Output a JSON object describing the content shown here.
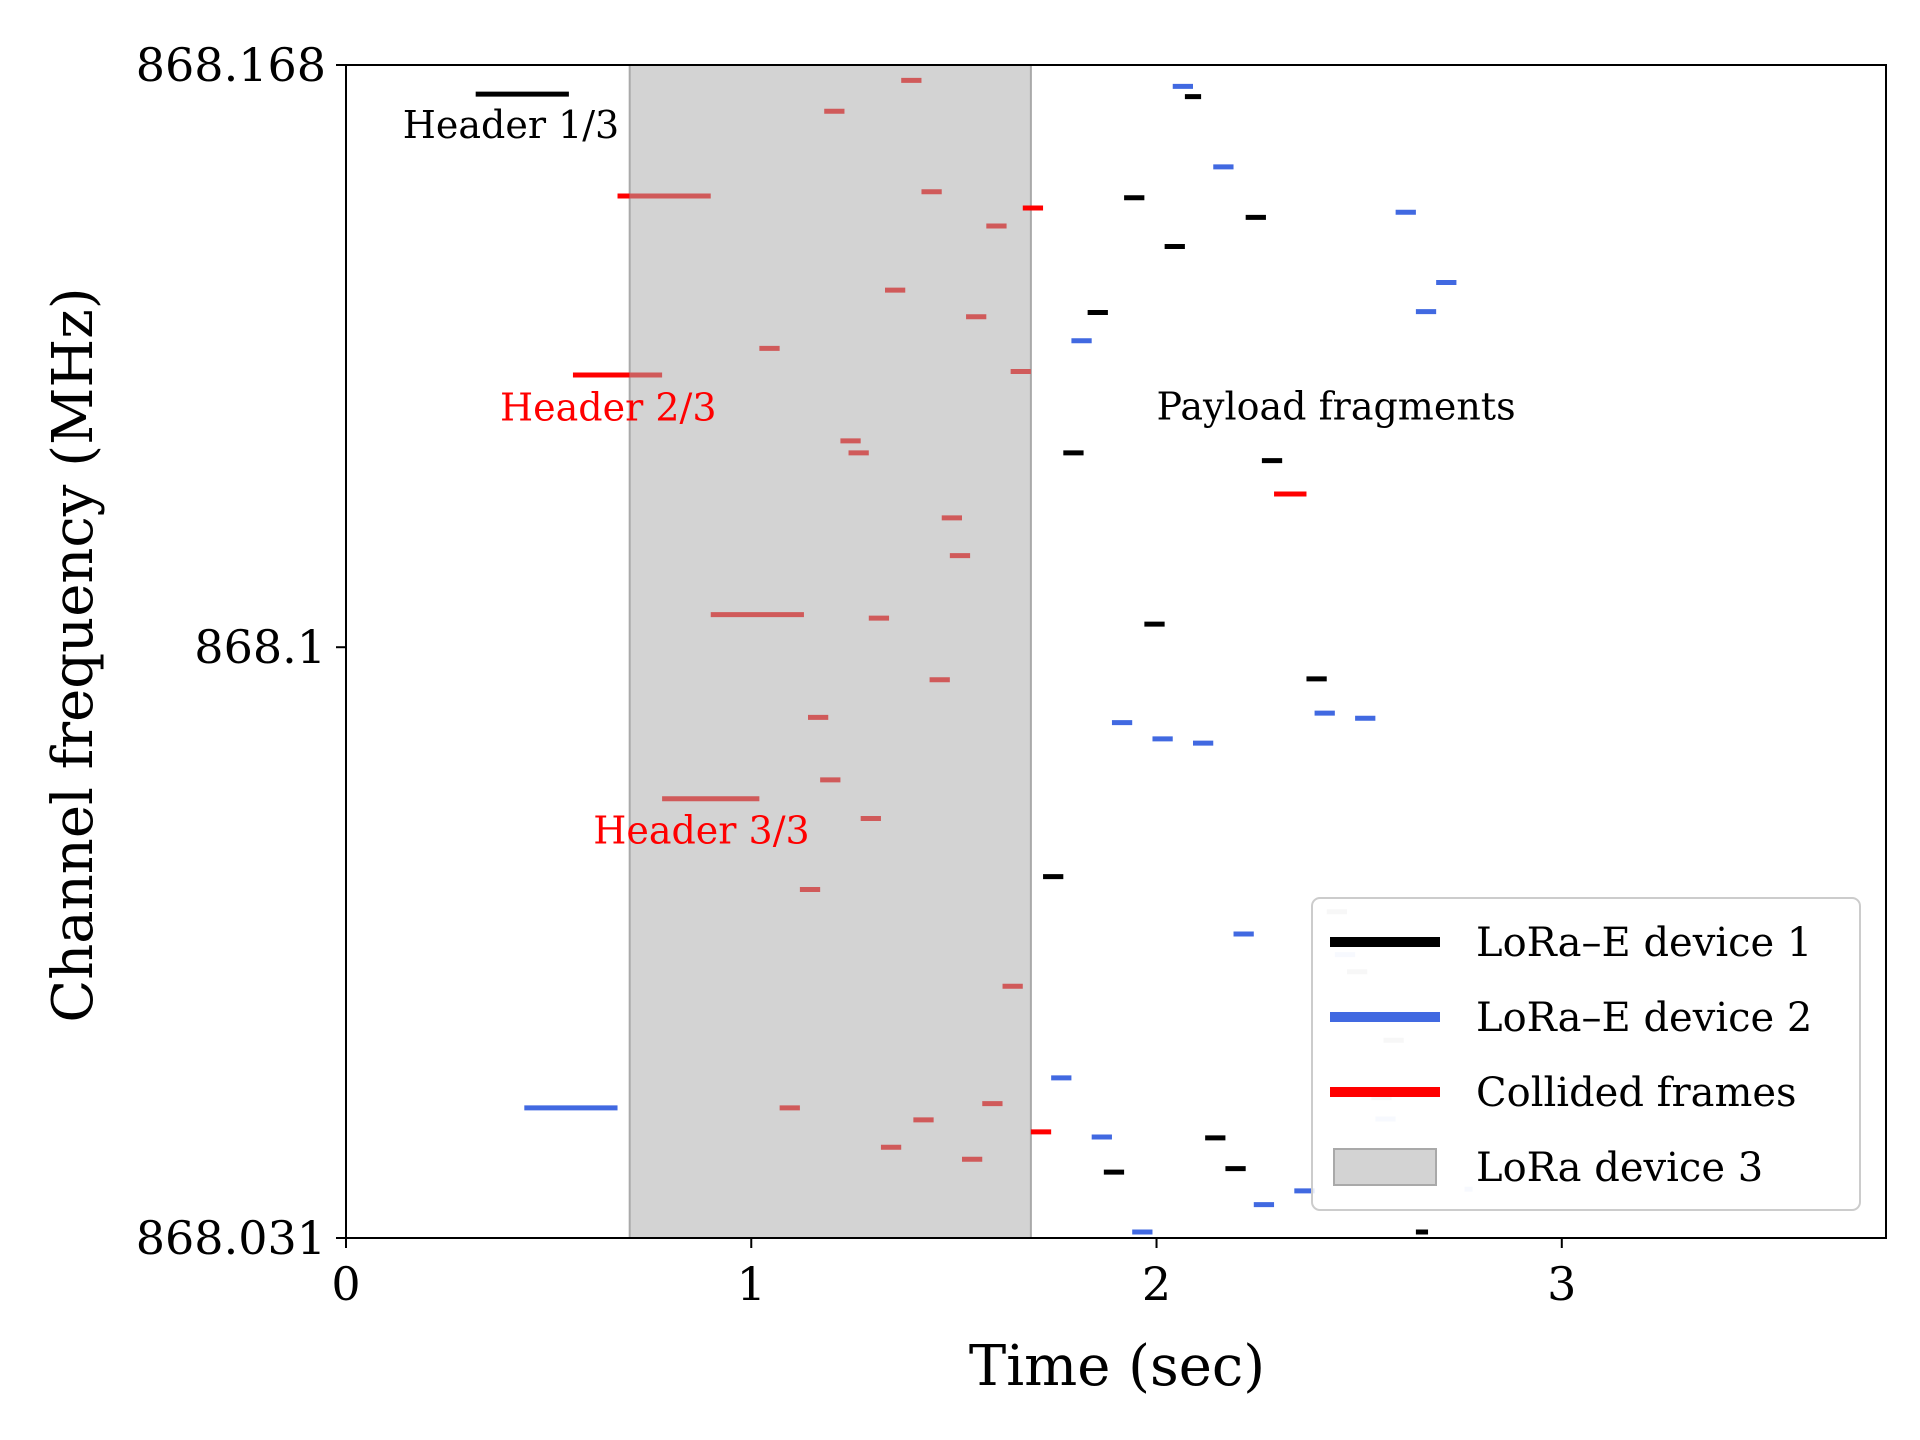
{
  "chart_data": {
    "type": "scatter",
    "xlabel": "Time (sec)",
    "ylabel": "Channel frequency (MHz)",
    "xlim": [
      0,
      3.8
    ],
    "ylim": [
      868.031,
      868.168
    ],
    "xticks": [
      0,
      1,
      2,
      3
    ],
    "yticks": [
      "868.031",
      "868.1",
      "868.168"
    ],
    "grid": false,
    "legend_position": "bottom-right",
    "colors": {
      "device1": "#000000",
      "device2": "#4169e1",
      "collided": "#ff0000",
      "collided_faded": "#d05a5a",
      "device3_fill": "#d3d3d3",
      "device3_edge": "#a9a9a9",
      "faded_gray": "#c8c8c8",
      "faded_blue": "#c9d7f5"
    },
    "legend": [
      {
        "label": "LoRa–E device 1",
        "kind": "line",
        "color": "#000000"
      },
      {
        "label": "LoRa–E device 2",
        "kind": "line",
        "color": "#4169e1"
      },
      {
        "label": "Collided frames",
        "kind": "line",
        "color": "#ff0000"
      },
      {
        "label": "LoRa device 3",
        "kind": "patch",
        "color": "#d3d3d3"
      }
    ],
    "device3_interval": [
      0.7,
      1.69
    ],
    "annotations": [
      {
        "text": "Header 1/3",
        "x": 0.14,
        "y": 868.1595,
        "color": "#000000"
      },
      {
        "text": "Header 2/3",
        "x": 0.38,
        "y": 868.1265,
        "color": "#ff0000"
      },
      {
        "text": "Header 3/3",
        "x": 0.61,
        "y": 868.0771,
        "color": "#ff0000"
      },
      {
        "text": "Payload fragments",
        "x": 2.0,
        "y": 868.1266,
        "color": "#000000"
      }
    ],
    "series": [
      {
        "key": "device1_headers",
        "color": "#000000",
        "width": 5,
        "segments": [
          [
            0.32,
            0.55,
            868.1646
          ]
        ]
      },
      {
        "key": "device1_payload",
        "color": "#000000",
        "width": 5,
        "segments": [
          [
            2.07,
            2.11,
            868.1643
          ],
          [
            1.92,
            1.97,
            868.1525
          ],
          [
            2.22,
            2.27,
            868.1502
          ],
          [
            2.02,
            2.07,
            868.1468
          ],
          [
            1.83,
            1.88,
            868.1391
          ],
          [
            1.77,
            1.82,
            868.1227
          ],
          [
            2.26,
            2.31,
            868.1218
          ],
          [
            1.97,
            2.02,
            868.1027
          ],
          [
            2.37,
            2.42,
            868.0963
          ],
          [
            1.72,
            1.77,
            868.0732
          ],
          [
            1.87,
            1.92,
            868.0387
          ],
          [
            2.12,
            2.17,
            868.0427
          ],
          [
            2.17,
            2.22,
            868.0391
          ],
          [
            2.64,
            2.67,
            868.0317
          ]
        ]
      },
      {
        "key": "device2_header",
        "color": "#4169e1",
        "width": 5,
        "segments": [
          [
            0.44,
            0.67,
            868.0462
          ]
        ]
      },
      {
        "key": "device2_payload",
        "color": "#4169e1",
        "width": 5,
        "segments": [
          [
            2.04,
            2.09,
            868.1655
          ],
          [
            2.14,
            2.19,
            868.1561
          ],
          [
            2.59,
            2.64,
            868.1508
          ],
          [
            2.69,
            2.74,
            868.1426
          ],
          [
            2.64,
            2.69,
            868.1392
          ],
          [
            1.79,
            1.84,
            868.1358
          ],
          [
            1.89,
            1.94,
            868.0912
          ],
          [
            1.99,
            2.04,
            868.0893
          ],
          [
            2.09,
            2.14,
            868.0888
          ],
          [
            2.39,
            2.44,
            868.0923
          ],
          [
            2.49,
            2.54,
            868.0917
          ],
          [
            2.19,
            2.24,
            868.0665
          ],
          [
            1.74,
            1.79,
            868.0497
          ],
          [
            1.84,
            1.89,
            868.0428
          ],
          [
            1.94,
            1.99,
            868.0317
          ],
          [
            2.24,
            2.29,
            868.0349
          ],
          [
            2.34,
            2.39,
            868.0365
          ]
        ]
      },
      {
        "key": "collided_solid",
        "color": "#ff0000",
        "width": 5,
        "segments": [
          [
            0.67,
            0.7,
            868.1527
          ],
          [
            0.56,
            0.7,
            868.1318
          ],
          [
            1.67,
            1.72,
            868.1513
          ],
          [
            2.29,
            2.37,
            868.1179
          ],
          [
            1.69,
            1.74,
            868.0434
          ]
        ]
      },
      {
        "key": "collided_faded",
        "color": "#d05a5a",
        "width": 5,
        "segments": [
          [
            0.7,
            0.9,
            868.1527
          ],
          [
            0.7,
            0.78,
            868.1318
          ],
          [
            0.9,
            1.13,
            868.1038
          ],
          [
            0.78,
            1.02,
            868.0823
          ],
          [
            1.37,
            1.42,
            868.1662
          ],
          [
            1.18,
            1.23,
            868.1626
          ],
          [
            1.42,
            1.47,
            868.1532
          ],
          [
            1.58,
            1.63,
            868.1492
          ],
          [
            1.33,
            1.38,
            868.1417
          ],
          [
            1.53,
            1.58,
            868.1386
          ],
          [
            1.02,
            1.07,
            868.1349
          ],
          [
            1.64,
            1.69,
            868.1322
          ],
          [
            1.22,
            1.27,
            868.1241
          ],
          [
            1.24,
            1.29,
            868.1227
          ],
          [
            1.47,
            1.52,
            868.1151
          ],
          [
            1.49,
            1.54,
            868.1107
          ],
          [
            1.29,
            1.34,
            868.1034
          ],
          [
            1.44,
            1.49,
            868.0962
          ],
          [
            1.14,
            1.19,
            868.0918
          ],
          [
            1.17,
            1.22,
            868.0845
          ],
          [
            1.27,
            1.32,
            868.08
          ],
          [
            1.12,
            1.17,
            868.0717
          ],
          [
            1.62,
            1.67,
            868.0604
          ],
          [
            1.07,
            1.12,
            868.0462
          ],
          [
            1.4,
            1.45,
            868.0448
          ],
          [
            1.57,
            1.62,
            868.0467
          ],
          [
            1.32,
            1.37,
            868.0416
          ],
          [
            1.52,
            1.57,
            868.0402
          ]
        ]
      },
      {
        "key": "faded_background",
        "color": "#c8c8c8",
        "width": 5,
        "segments": [
          [
            2.42,
            2.47,
            868.0691
          ],
          [
            2.47,
            2.52,
            868.0621
          ],
          [
            2.56,
            2.61,
            868.0541
          ],
          [
            2.53,
            2.58,
            868.0474
          ]
        ]
      },
      {
        "key": "faded_blue",
        "color": "#c9d7f5",
        "width": 5,
        "segments": [
          [
            2.44,
            2.49,
            868.0641
          ],
          [
            2.54,
            2.59,
            868.0449
          ],
          [
            2.76,
            2.78,
            868.0367
          ]
        ]
      }
    ]
  }
}
